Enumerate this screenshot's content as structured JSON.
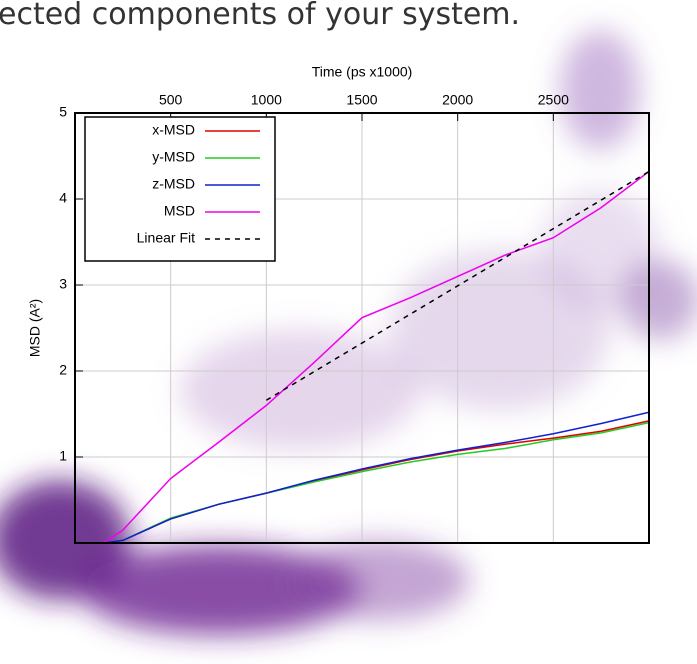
{
  "header_text": "ected components of your system.",
  "chart_data": {
    "type": "line",
    "x_label": "Time (ps x1000)",
    "y_label": "MSD (A²)",
    "x": [
      150,
      250,
      500,
      750,
      1000,
      1250,
      1500,
      1750,
      2000,
      2250,
      2500,
      2750,
      3000
    ],
    "series": [
      {
        "name": "x-MSD",
        "color": "#e00000",
        "values": [
          0,
          0.03,
          0.28,
          0.45,
          0.58,
          0.72,
          0.85,
          0.97,
          1.07,
          1.15,
          1.22,
          1.3,
          1.42
        ]
      },
      {
        "name": "y-MSD",
        "color": "#22cc22",
        "values": [
          0,
          0.03,
          0.29,
          0.45,
          0.58,
          0.71,
          0.83,
          0.94,
          1.03,
          1.1,
          1.2,
          1.28,
          1.4
        ]
      },
      {
        "name": "z-MSD",
        "color": "#1020d0",
        "values": [
          0,
          0.03,
          0.28,
          0.45,
          0.58,
          0.73,
          0.86,
          0.98,
          1.08,
          1.17,
          1.27,
          1.39,
          1.52
        ]
      },
      {
        "name": "MSD",
        "color": "#ee00ee",
        "values": [
          0,
          0.15,
          0.75,
          1.17,
          1.6,
          2.1,
          2.62,
          2.85,
          3.1,
          3.35,
          3.55,
          3.9,
          4.32
        ]
      },
      {
        "name": "Linear Fit",
        "color": "#000000",
        "dash": true,
        "x": [
          1000,
          3000
        ],
        "values": [
          1.66,
          4.32
        ]
      }
    ],
    "xlim": [
      0,
      3000
    ],
    "xticks": [
      500,
      1000,
      1500,
      2000,
      2500
    ],
    "ylim": [
      0,
      5
    ],
    "yticks": [
      1,
      2,
      3,
      4,
      5
    ],
    "grid": true,
    "legend": "upper left"
  }
}
